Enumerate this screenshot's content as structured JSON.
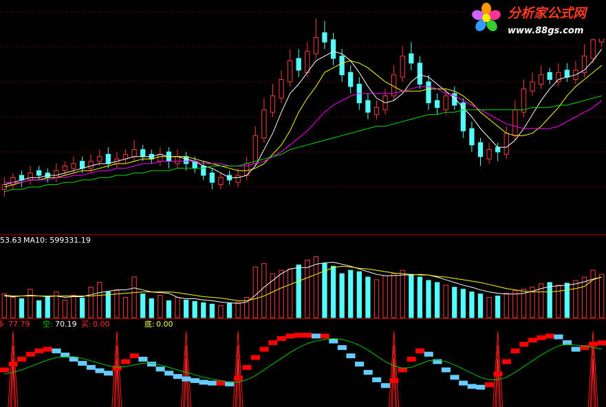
{
  "logo": {
    "title": "分析家公式网",
    "url": "www.88gs.com"
  },
  "chart_data": [
    {
      "type": "candlestick",
      "ylim": [
        10,
        20
      ],
      "gridlines": [
        12,
        13.5,
        15,
        16.5,
        18,
        19.5
      ],
      "up_color": "#ff3c3c",
      "down_color": "#54fcfc",
      "open": [
        11.9,
        12.1,
        12.5,
        12.3,
        12.7,
        12.6,
        12.4,
        12.7,
        12.8,
        13.1,
        12.8,
        13.1,
        13.4,
        13.0,
        13.2,
        13.3,
        13.6,
        13.4,
        13.1,
        13.5,
        13.0,
        13.3,
        13.1,
        12.9,
        12.6,
        12.1,
        12.5,
        12.2,
        12.5,
        13.0,
        14.1,
        15.2,
        15.8,
        16.5,
        17.5,
        16.9,
        17.7,
        18.6,
        18.3,
        17.6,
        16.9,
        16.4,
        15.7,
        15.1,
        15.3,
        15.9,
        16.7,
        17.7,
        17.3,
        16.5,
        15.7,
        15.3,
        16.0,
        15.6,
        14.5,
        13.9,
        13.2,
        13.7,
        13.4,
        14.2,
        15.2,
        16.1,
        16.4,
        16.9,
        16.5,
        17.0,
        16.6,
        16.9,
        17.5,
        18.2
      ],
      "high": [
        12.4,
        12.6,
        12.7,
        12.9,
        12.9,
        12.8,
        13.0,
        13.1,
        13.3,
        13.3,
        13.4,
        13.6,
        13.7,
        13.5,
        13.6,
        14.0,
        13.8,
        13.6,
        13.7,
        13.7,
        13.6,
        13.5,
        13.3,
        13.1,
        12.8,
        12.6,
        12.7,
        12.8,
        13.3,
        14.6,
        15.8,
        16.4,
        17.0,
        17.9,
        17.9,
        18.2,
        19.2,
        19.1,
        18.6,
        17.9,
        17.2,
        16.7,
        16.0,
        15.7,
        16.2,
        17.2,
        18.0,
        18.2,
        17.6,
        16.8,
        16.0,
        16.2,
        16.3,
        15.8,
        14.8,
        14.1,
        13.9,
        13.9,
        14.6,
        15.7,
        16.6,
        16.9,
        17.2,
        17.1,
        17.3,
        17.3,
        17.4,
        18.1,
        18.9,
        19.4
      ],
      "low": [
        11.6,
        11.9,
        12.0,
        12.1,
        12.3,
        12.2,
        12.2,
        12.5,
        12.6,
        12.6,
        12.6,
        12.9,
        12.8,
        12.8,
        13.0,
        13.1,
        13.1,
        13.0,
        12.9,
        12.8,
        12.8,
        12.7,
        12.6,
        12.3,
        11.9,
        11.9,
        12.1,
        12.0,
        12.3,
        12.9,
        13.9,
        15.0,
        15.6,
        16.3,
        16.7,
        16.7,
        17.5,
        17.9,
        17.2,
        16.5,
        16.0,
        15.3,
        14.9,
        14.9,
        15.1,
        15.7,
        16.5,
        17.0,
        16.2,
        15.3,
        15.1,
        15.1,
        15.3,
        14.1,
        13.5,
        12.9,
        13.0,
        13.1,
        13.2,
        14.0,
        15.0,
        15.9,
        16.2,
        16.4,
        16.3,
        16.5,
        16.4,
        16.7,
        17.3,
        18.0
      ],
      "close": [
        12.1,
        12.4,
        12.3,
        12.6,
        12.5,
        12.4,
        12.7,
        12.9,
        13.0,
        12.8,
        13.1,
        13.3,
        13.0,
        13.2,
        13.4,
        13.6,
        13.3,
        13.2,
        13.4,
        13.1,
        13.3,
        13.0,
        12.8,
        12.5,
        12.2,
        12.4,
        12.3,
        12.5,
        13.0,
        14.2,
        15.3,
        15.9,
        16.6,
        17.4,
        17.0,
        17.8,
        18.4,
        18.2,
        17.5,
        16.8,
        16.3,
        15.6,
        15.2,
        15.4,
        15.9,
        16.8,
        17.6,
        17.3,
        16.4,
        15.6,
        15.4,
        15.9,
        15.5,
        14.4,
        13.8,
        13.3,
        13.6,
        13.5,
        14.3,
        15.3,
        16.2,
        16.5,
        16.8,
        16.6,
        16.9,
        16.7,
        17.0,
        17.6,
        18.3,
        18.7
      ],
      "lines": [
        {
          "color": "#ffffff",
          "values": [
            12.1,
            12.2,
            12.3,
            12.4,
            12.4,
            12.5,
            12.5,
            12.6,
            12.7,
            12.8,
            12.9,
            13.0,
            13.0,
            13.1,
            13.2,
            13.3,
            13.3,
            13.3,
            13.4,
            13.3,
            13.3,
            13.2,
            13.1,
            12.9,
            12.8,
            12.6,
            12.4,
            12.4,
            12.5,
            12.9,
            13.6,
            14.3,
            15.2,
            16.0,
            16.4,
            16.9,
            17.4,
            17.6,
            17.8,
            17.7,
            17.4,
            16.9,
            16.3,
            15.8,
            15.6,
            15.7,
            16.0,
            16.5,
            16.8,
            16.7,
            16.4,
            16.1,
            15.8,
            15.4,
            15.0,
            14.5,
            14.1,
            13.7,
            13.7,
            14.0,
            14.5,
            15.1,
            15.7,
            16.2,
            16.6,
            16.7,
            16.8,
            17.0,
            17.4,
            17.9
          ]
        },
        {
          "color": "#ffff00",
          "values": [
            12.0,
            12.1,
            12.2,
            12.3,
            12.3,
            12.4,
            12.4,
            12.5,
            12.6,
            12.7,
            12.7,
            12.8,
            12.9,
            13.0,
            13.0,
            13.1,
            13.2,
            13.2,
            13.3,
            13.3,
            13.3,
            13.3,
            13.2,
            13.1,
            13.0,
            12.9,
            12.8,
            12.7,
            12.7,
            12.8,
            13.0,
            13.4,
            13.8,
            14.4,
            15.2,
            15.8,
            16.3,
            16.9,
            17.1,
            17.3,
            17.4,
            17.3,
            17.1,
            16.8,
            16.5,
            16.3,
            16.1,
            16.1,
            16.1,
            16.2,
            16.2,
            16.2,
            16.1,
            15.9,
            15.6,
            15.2,
            14.9,
            14.6,
            14.3,
            14.2,
            14.2,
            14.3,
            14.6,
            15.0,
            15.4,
            15.9,
            16.3,
            16.6,
            16.9,
            17.2
          ]
        },
        {
          "color": "#ff00ff",
          "values": [
            12.2,
            12.2,
            12.2,
            12.3,
            12.3,
            12.3,
            12.4,
            12.4,
            12.5,
            12.5,
            12.6,
            12.7,
            12.7,
            12.8,
            12.8,
            12.9,
            13.0,
            13.0,
            13.1,
            13.1,
            13.1,
            13.1,
            13.1,
            13.0,
            13.0,
            13.0,
            12.9,
            12.9,
            12.9,
            13.0,
            13.1,
            13.3,
            13.5,
            13.8,
            14.1,
            14.4,
            14.8,
            15.2,
            15.5,
            15.7,
            15.9,
            16.0,
            16.0,
            16.0,
            16.0,
            16.0,
            16.1,
            16.2,
            16.3,
            16.3,
            16.2,
            16.0,
            15.9,
            15.7,
            15.5,
            15.3,
            15.1,
            14.9,
            14.7,
            14.6,
            14.5,
            14.5,
            14.5,
            14.5,
            14.6,
            14.8,
            15.0,
            15.2,
            15.4,
            15.7
          ]
        },
        {
          "color": "#00e000",
          "values": [
            11.8,
            11.9,
            11.9,
            12.0,
            12.0,
            12.1,
            12.1,
            12.2,
            12.2,
            12.3,
            12.3,
            12.4,
            12.4,
            12.5,
            12.5,
            12.6,
            12.6,
            12.7,
            12.7,
            12.7,
            12.8,
            12.8,
            12.8,
            12.8,
            12.9,
            12.9,
            12.9,
            12.9,
            13.0,
            13.1,
            13.2,
            13.3,
            13.4,
            13.6,
            13.7,
            13.8,
            13.9,
            14.0,
            14.1,
            14.2,
            14.3,
            14.4,
            14.5,
            14.6,
            14.6,
            14.7,
            14.8,
            14.9,
            15.0,
            15.1,
            15.1,
            15.2,
            15.2,
            15.3,
            15.3,
            15.3,
            15.3,
            15.3,
            15.3,
            15.3,
            15.3,
            15.4,
            15.4,
            15.4,
            15.5,
            15.5,
            15.6,
            15.7,
            15.8,
            15.9
          ]
        }
      ]
    },
    {
      "type": "bar",
      "ylim": [
        0,
        1200000
      ],
      "header": [
        "53.63",
        "MA10: 599331.19"
      ],
      "up_color": "#ff3c3c",
      "down_color": "#54fcfc",
      "values": [
        350000,
        300000,
        280000,
        420000,
        250000,
        300000,
        380000,
        260000,
        330000,
        290000,
        450000,
        520000,
        380000,
        400000,
        300000,
        600000,
        350000,
        280000,
        330000,
        250000,
        300000,
        260000,
        240000,
        220000,
        200000,
        180000,
        210000,
        230000,
        300000,
        750000,
        800000,
        650000,
        700000,
        720000,
        780000,
        850000,
        900000,
        800000,
        760000,
        650000,
        700000,
        680000,
        600000,
        560000,
        620000,
        650000,
        700000,
        640000,
        600000,
        550000,
        520000,
        480000,
        450000,
        420000,
        380000,
        350000,
        300000,
        320000,
        360000,
        400000,
        420000,
        450000,
        500000,
        520000,
        480000,
        510000,
        550000,
        600000,
        700000,
        640000
      ],
      "lines": [
        {
          "color": "#ffffff",
          "values": [
            320000,
            310000,
            320000,
            330000,
            320000,
            310000,
            320000,
            300000,
            310000,
            310000,
            340000,
            370000,
            390000,
            410000,
            410000,
            440000,
            410000,
            380000,
            370000,
            360000,
            300000,
            280000,
            280000,
            260000,
            250000,
            230000,
            220000,
            210000,
            230000,
            330000,
            450000,
            550000,
            650000,
            720000,
            740000,
            740000,
            790000,
            810000,
            820000,
            790000,
            760000,
            720000,
            680000,
            640000,
            620000,
            620000,
            630000,
            630000,
            640000,
            630000,
            600000,
            560000,
            520000,
            480000,
            450000,
            410000,
            380000,
            360000,
            350000,
            350000,
            360000,
            390000,
            430000,
            460000,
            470000,
            480000,
            500000,
            530000,
            570000,
            600000
          ]
        },
        {
          "color": "#ffff00",
          "values": [
            330000,
            320000,
            320000,
            320000,
            320000,
            320000,
            320000,
            320000,
            320000,
            320000,
            320000,
            330000,
            340000,
            350000,
            360000,
            370000,
            380000,
            380000,
            380000,
            380000,
            370000,
            350000,
            330000,
            310000,
            300000,
            290000,
            270000,
            250000,
            250000,
            280000,
            320000,
            380000,
            440000,
            490000,
            540000,
            590000,
            640000,
            690000,
            740000,
            760000,
            750000,
            730000,
            720000,
            700000,
            680000,
            660000,
            650000,
            640000,
            630000,
            630000,
            610000,
            600000,
            580000,
            560000,
            540000,
            520000,
            490000,
            460000,
            430000,
            410000,
            390000,
            380000,
            380000,
            380000,
            390000,
            410000,
            430000,
            460000,
            560000,
            599331.19
          ]
        }
      ]
    },
    {
      "type": "line",
      "ylim": [
        0,
        105
      ],
      "rise_color": "#ff0000",
      "fall_color": "#66ccff",
      "signal_color": "#ff2020",
      "buy_signals": [
        1,
        13,
        21,
        27,
        45,
        57,
        68
      ],
      "series": [
        {
          "name": "多",
          "color": "#ff3030",
          "style": "step",
          "values": [
            45,
            52,
            58,
            64,
            68,
            70,
            68,
            63,
            58,
            53,
            48,
            44,
            41,
            47,
            55,
            62,
            58,
            52,
            46,
            41,
            37,
            34,
            32,
            30,
            29,
            29,
            28,
            35,
            48,
            60,
            70,
            78,
            83,
            86,
            87,
            87,
            86,
            86,
            80,
            72,
            62,
            52,
            42,
            33,
            26,
            32,
            45,
            58,
            68,
            64,
            55,
            45,
            36,
            29,
            25,
            24,
            27,
            40,
            55,
            68,
            76,
            81,
            84,
            86,
            85,
            78,
            70,
            72,
            76,
            77.79
          ]
        },
        {
          "name": "空:",
          "color": "#00c800",
          "style": "line",
          "values": [
            40,
            42,
            45,
            49,
            53,
            57,
            60,
            61,
            61,
            59,
            56,
            53,
            50,
            48,
            49,
            51,
            53,
            53,
            51,
            48,
            45,
            42,
            39,
            36,
            34,
            32,
            30,
            30,
            33,
            38,
            45,
            52,
            59,
            66,
            72,
            77,
            80,
            82,
            83,
            82,
            79,
            75,
            69,
            62,
            55,
            50,
            47,
            48,
            52,
            56,
            57,
            55,
            51,
            46,
            41,
            36,
            33,
            33,
            36,
            42,
            49,
            56,
            63,
            69,
            74,
            76,
            75,
            74,
            72,
            70.19
          ]
        }
      ],
      "readouts": [
        {
          "label": "买:",
          "value": 0,
          "value_label": "0.00",
          "color": "#ff3030"
        },
        {
          "label": "底:",
          "value": 0,
          "value_label": "0.00",
          "color": "#ffff40"
        }
      ]
    }
  ]
}
